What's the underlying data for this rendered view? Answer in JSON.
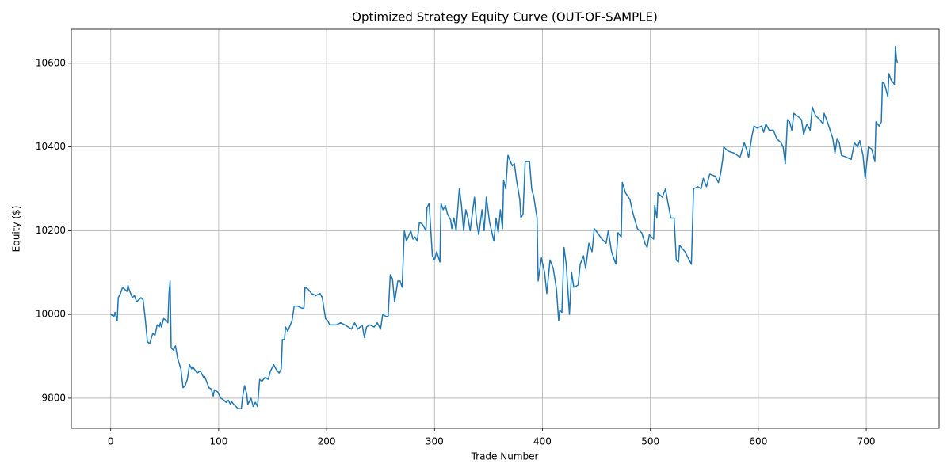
{
  "chart_data": {
    "type": "line",
    "title": "Optimized Strategy Equity Curve (OUT-OF-SAMPLE)",
    "xlabel": "Trade Number",
    "ylabel": "Equity ($)",
    "color": "#1f77b4",
    "grid": true,
    "xlim": [
      -36.5,
      767.5
    ],
    "ylim": [
      9728,
      10681
    ],
    "xticks": [
      0,
      100,
      200,
      300,
      400,
      500,
      600,
      700
    ],
    "yticks": [
      9800,
      10000,
      10200,
      10400,
      10600
    ],
    "x": [
      0,
      3,
      4,
      6,
      7,
      9,
      11,
      15,
      16,
      17,
      20,
      22,
      24,
      28,
      30,
      32,
      34,
      36,
      39,
      41,
      43,
      45,
      46,
      47,
      49,
      52,
      53,
      54,
      55,
      56,
      58,
      60,
      62,
      65,
      67,
      69,
      71,
      73,
      75,
      76,
      80,
      83,
      86,
      87,
      91,
      93,
      95,
      96,
      99,
      102,
      105,
      107,
      109,
      111,
      112,
      114,
      118,
      121,
      122,
      124,
      126,
      127,
      130,
      132,
      134,
      136,
      138,
      140,
      143,
      146,
      148,
      151,
      153,
      156,
      158,
      159,
      161,
      162,
      164,
      168,
      170,
      173,
      177,
      179,
      180,
      183,
      186,
      190,
      194,
      196,
      199,
      201,
      203,
      209,
      213,
      217,
      223,
      226,
      229,
      233,
      235,
      237,
      240,
      244,
      247,
      250,
      252,
      255,
      257,
      259,
      261,
      263,
      266,
      268,
      270,
      272,
      274,
      278,
      280,
      282,
      284,
      286,
      289,
      292,
      293,
      295,
      298,
      300,
      302,
      305,
      306,
      308,
      310,
      312,
      315,
      316,
      318,
      320,
      323,
      325,
      327,
      329,
      331,
      333,
      337,
      339,
      341,
      344,
      346,
      348,
      351,
      355,
      357,
      359,
      361,
      363,
      364,
      366,
      368,
      372,
      374,
      376,
      379,
      380,
      382,
      384,
      388,
      390,
      392,
      395,
      396,
      399,
      402,
      404,
      407,
      410,
      413,
      415,
      416,
      418,
      420,
      422,
      425,
      427,
      429,
      433,
      435,
      438,
      440,
      443,
      446,
      448,
      451,
      455,
      459,
      461,
      464,
      468,
      470,
      473,
      474,
      477,
      481,
      484,
      488,
      492,
      495,
      497,
      499,
      503,
      504,
      506,
      507,
      511,
      514,
      516,
      519,
      522,
      524,
      526,
      527,
      532,
      535,
      538,
      540,
      544,
      547,
      549,
      552,
      555,
      560,
      563,
      565,
      567,
      568,
      572,
      578,
      583,
      587,
      589,
      591,
      594,
      596,
      599,
      603,
      605,
      607,
      610,
      614,
      617,
      621,
      623,
      625,
      627,
      629,
      631,
      633,
      638,
      640,
      642,
      645,
      648,
      650,
      653,
      657,
      660,
      661,
      664,
      669,
      671,
      673,
      675,
      677,
      682,
      686,
      689,
      692,
      694,
      697,
      699,
      702,
      705,
      708,
      709,
      712,
      714,
      715,
      717,
      720,
      721,
      723,
      726,
      727,
      728,
      729
    ],
    "values": [
      10000,
      9995,
      10005,
      9985,
      10040,
      10050,
      10065,
      10055,
      10070,
      10060,
      10040,
      10045,
      10030,
      10040,
      10035,
      9990,
      9935,
      9930,
      9955,
      9950,
      9975,
      9970,
      9980,
      9970,
      9990,
      9985,
      9980,
      10050,
      10080,
      9920,
      9915,
      9925,
      9895,
      9870,
      9825,
      9830,
      9845,
      9880,
      9870,
      9875,
      9860,
      9865,
      9850,
      9852,
      9825,
      9822,
      9805,
      9820,
      9815,
      9800,
      9795,
      9790,
      9795,
      9785,
      9792,
      9785,
      9775,
      9775,
      9800,
      9830,
      9810,
      9785,
      9800,
      9780,
      9790,
      9780,
      9845,
      9840,
      9850,
      9845,
      9865,
      9880,
      9870,
      9860,
      9870,
      9940,
      9940,
      9970,
      9960,
      9985,
      10020,
      10020,
      10015,
      10015,
      10065,
      10060,
      10050,
      10045,
      10050,
      10040,
      9990,
      9985,
      9975,
      9975,
      9980,
      9975,
      9965,
      9980,
      9965,
      9975,
      9945,
      9970,
      9975,
      9970,
      9980,
      9965,
      10000,
      9995,
      9995,
      10095,
      10085,
      10030,
      10080,
      10080,
      10065,
      10200,
      10175,
      10200,
      10180,
      10185,
      10175,
      10220,
      10215,
      10200,
      10255,
      10265,
      10140,
      10130,
      10150,
      10125,
      10265,
      10250,
      10260,
      10240,
      10225,
      10205,
      10230,
      10200,
      10300,
      10260,
      10200,
      10250,
      10230,
      10200,
      10280,
      10220,
      10190,
      10250,
      10200,
      10280,
      10220,
      10175,
      10230,
      10195,
      10250,
      10205,
      10320,
      10300,
      10380,
      10355,
      10360,
      10320,
      10275,
      10230,
      10240,
      10365,
      10365,
      10300,
      10280,
      10230,
      10080,
      10135,
      10100,
      10050,
      10130,
      10110,
      10060,
      9985,
      10010,
      10005,
      10160,
      10120,
      10000,
      10100,
      10065,
      10070,
      10120,
      10140,
      10110,
      10170,
      10150,
      10205,
      10195,
      10180,
      10170,
      10200,
      10150,
      10120,
      10195,
      10185,
      10315,
      10290,
      10275,
      10240,
      10205,
      10195,
      10170,
      10160,
      10190,
      10180,
      10260,
      10230,
      10290,
      10280,
      10300,
      10270,
      10230,
      10230,
      10130,
      10125,
      10165,
      10150,
      10135,
      10120,
      10300,
      10305,
      10300,
      10325,
      10305,
      10335,
      10330,
      10315,
      10335,
      10370,
      10400,
      10390,
      10385,
      10375,
      10410,
      10395,
      10375,
      10425,
      10450,
      10445,
      10450,
      10435,
      10455,
      10440,
      10440,
      10420,
      10410,
      10400,
      10360,
      10465,
      10460,
      10440,
      10480,
      10470,
      10465,
      10430,
      10455,
      10440,
      10495,
      10475,
      10465,
      10455,
      10480,
      10460,
      10420,
      10385,
      10420,
      10410,
      10380,
      10375,
      10370,
      10410,
      10400,
      10415,
      10380,
      10325,
      10400,
      10395,
      10365,
      10460,
      10450,
      10460,
      10555,
      10550,
      10520,
      10575,
      10560,
      10550,
      10640,
      10610,
      10600
    ]
  }
}
